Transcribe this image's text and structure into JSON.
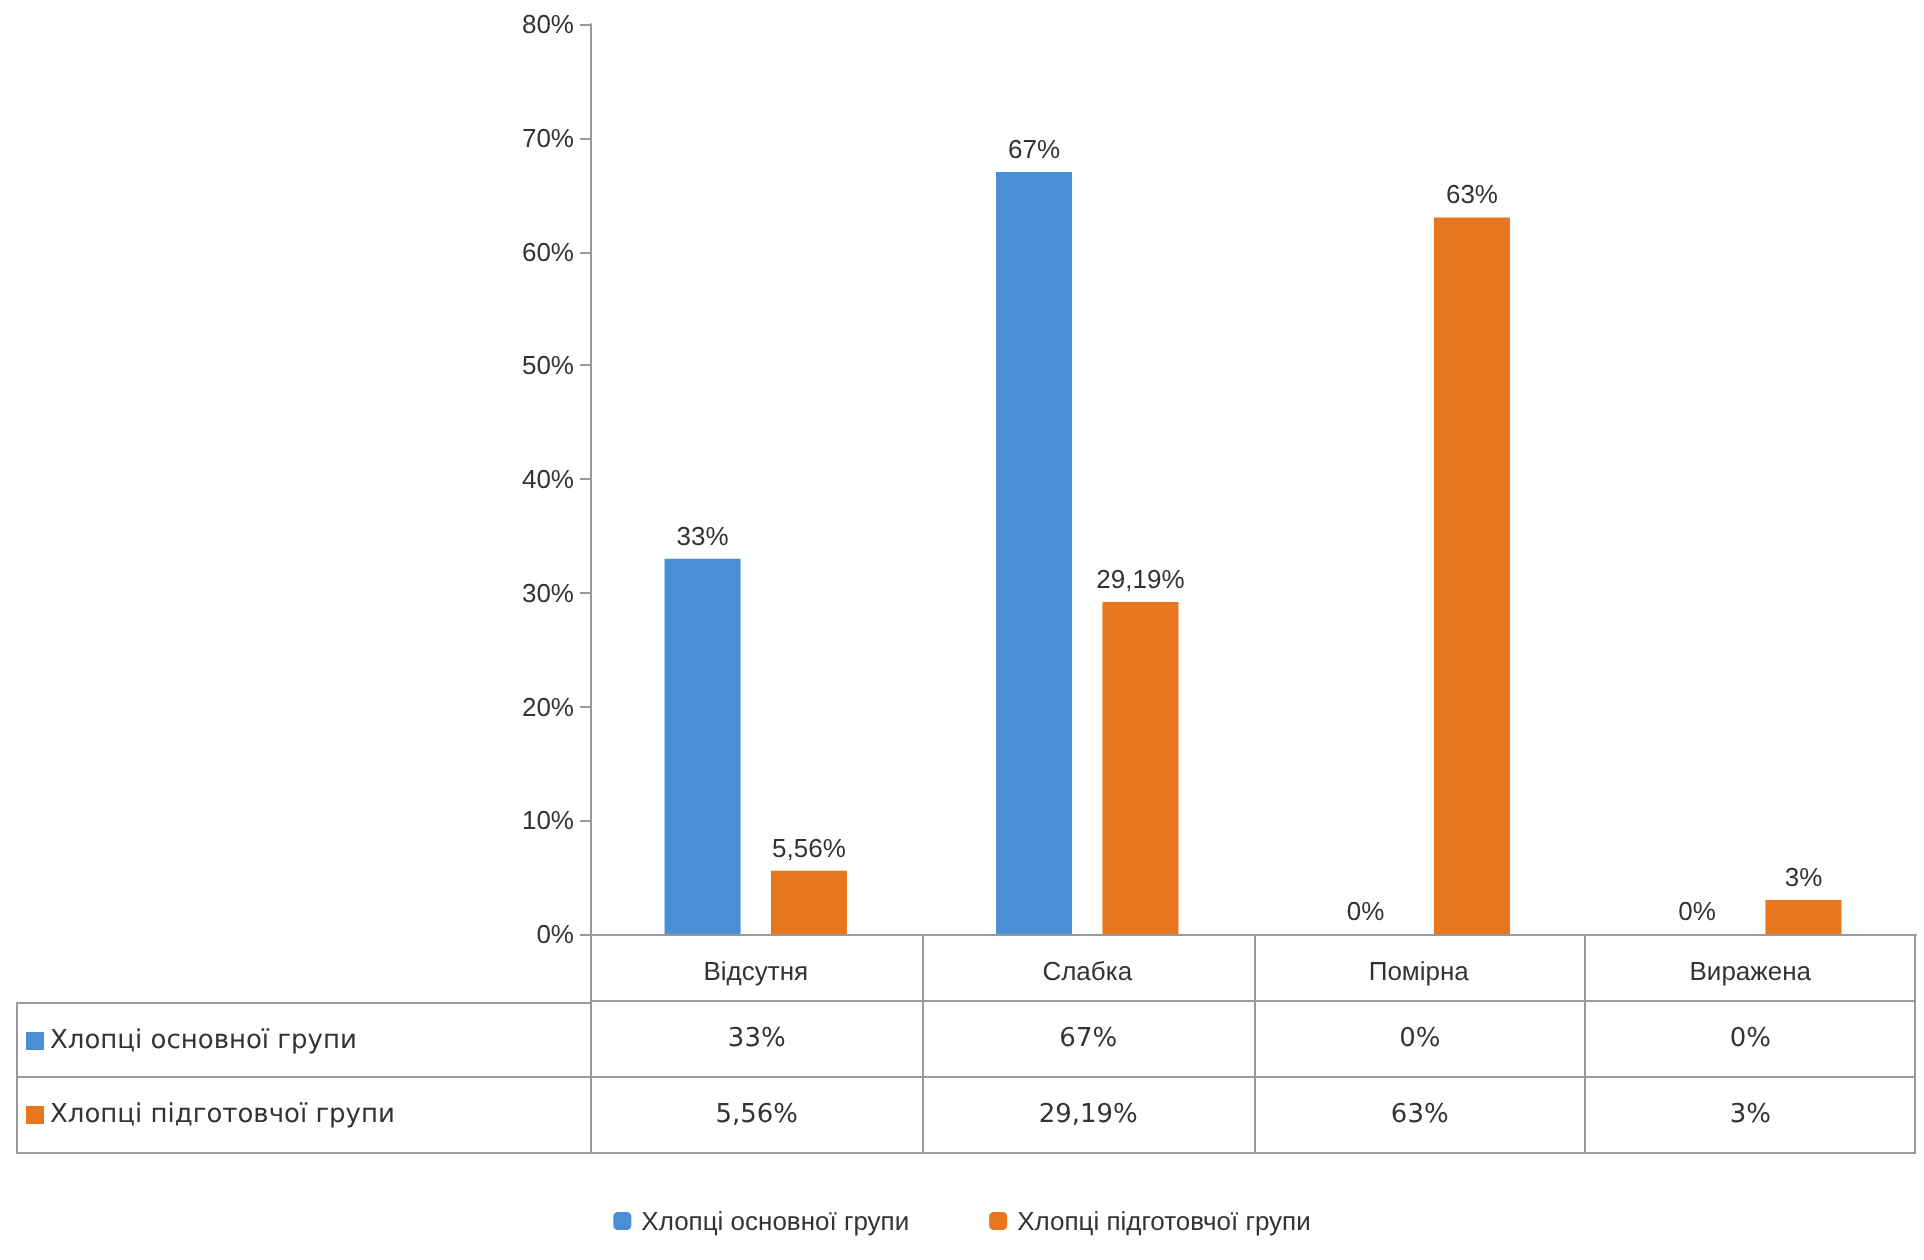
{
  "chart_data": {
    "type": "bar",
    "categories": [
      "Відсутня",
      "Слабка",
      "Помірна",
      "Виражена"
    ],
    "series": [
      {
        "name": "Хлопці основної групи",
        "color": "#4a8fd6",
        "values": [
          33,
          67,
          0,
          0
        ],
        "value_labels": [
          "33%",
          "67%",
          "0%",
          "0%"
        ]
      },
      {
        "name": "Хлопці підготовчої групи",
        "color": "#e8761e",
        "values": [
          5.56,
          29.19,
          63,
          3
        ],
        "value_labels": [
          "5,56%",
          "29,19%",
          "63%",
          "3%"
        ]
      }
    ],
    "ylim": [
      0,
      80
    ],
    "yticks": [
      {
        "value": 0,
        "label": "0%"
      },
      {
        "value": 10,
        "label": "10%"
      },
      {
        "value": 20,
        "label": "20%"
      },
      {
        "value": 30,
        "label": "30%"
      },
      {
        "value": 40,
        "label": "40%"
      },
      {
        "value": 50,
        "label": "50%"
      },
      {
        "value": 60,
        "label": "60%"
      },
      {
        "value": 70,
        "label": "70%"
      },
      {
        "value": 80,
        "label": "80%"
      }
    ],
    "grid": false,
    "legend": "bottom"
  }
}
